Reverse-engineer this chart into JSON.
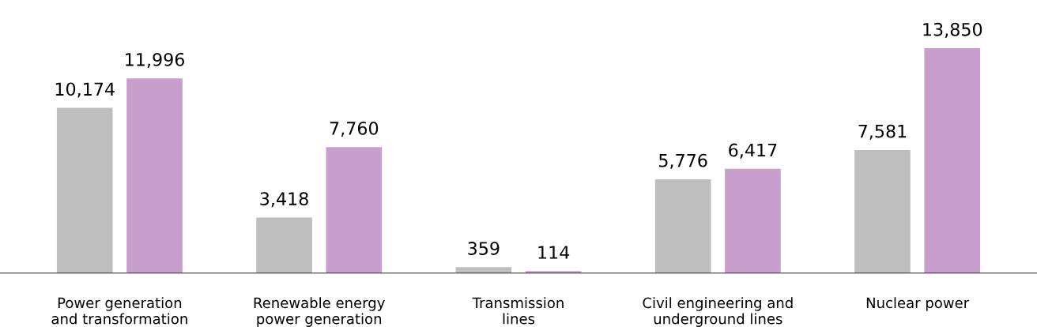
{
  "chart_data": {
    "type": "bar",
    "categories": [
      "Power generation\nand transformation",
      "Renewable energy\npower generation",
      "Transmission\nlines",
      "Civil engineering and\nunderground lines",
      "Nuclear power"
    ],
    "series": [
      {
        "color": "#bebebe",
        "values": [
          10174,
          3418,
          359,
          5776,
          7581
        ],
        "value_labels": [
          "10,174",
          "3,418",
          "359",
          "5,776",
          "7,581"
        ]
      },
      {
        "color": "#c89fcc",
        "values": [
          11996,
          7760,
          114,
          6417,
          13850
        ],
        "value_labels": [
          "11,996",
          "7,760",
          "114",
          "6,417",
          "13,850"
        ]
      }
    ],
    "legend": false,
    "grid": false
  }
}
